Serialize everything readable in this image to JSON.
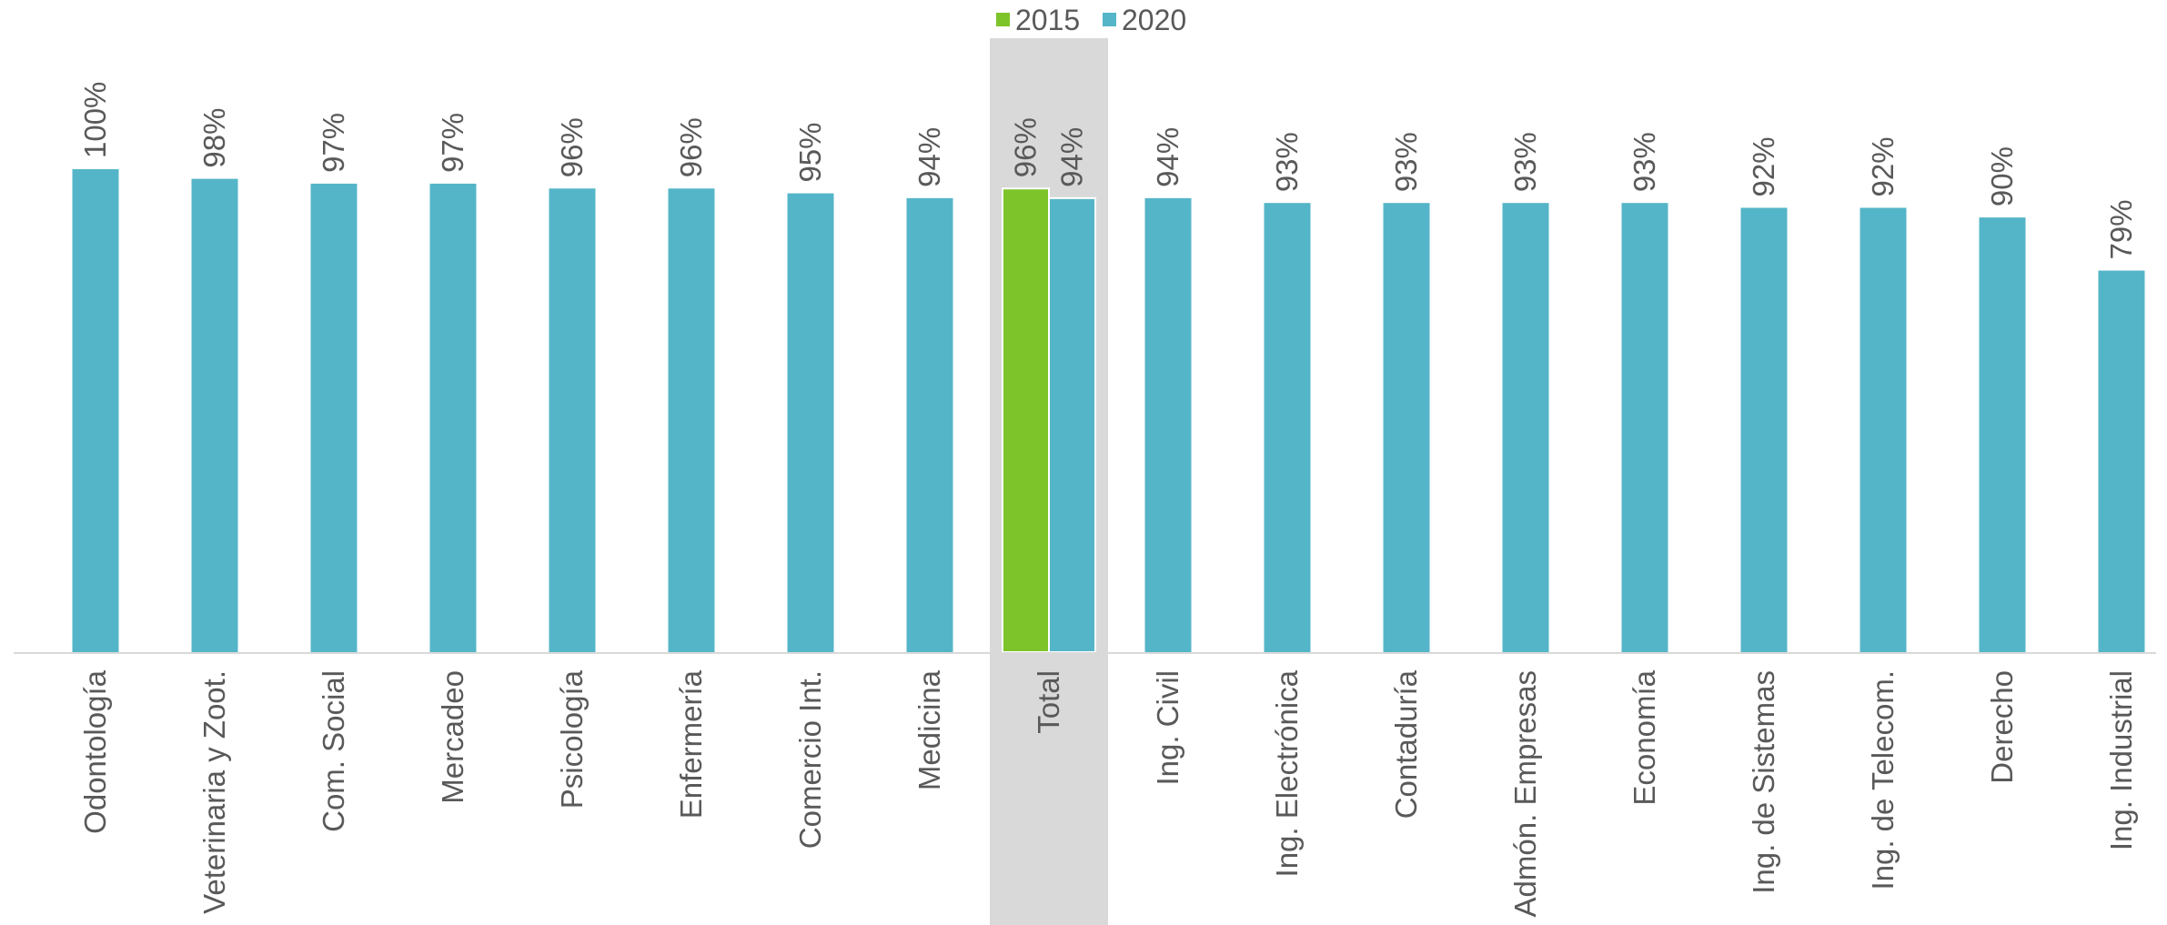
{
  "chart_data": {
    "type": "bar",
    "categories": [
      "Odontología",
      "Veterinaria y Zoot.",
      "Com. Social",
      "Mercadeo",
      "Psicología",
      "Enfermería",
      "Comercio Int.",
      "Medicina",
      "Total",
      "Ing. Civil",
      "Ing. Electrónica",
      "Contaduría",
      "Admón. Empresas",
      "Economía",
      "Ing. de Sistemas",
      "Ing. de Telecom.",
      "Derecho",
      "Ing. Industrial"
    ],
    "series": [
      {
        "name": "2015",
        "values": [
          null,
          null,
          null,
          null,
          null,
          null,
          null,
          null,
          96,
          null,
          null,
          null,
          null,
          null,
          null,
          null,
          null,
          null
        ]
      },
      {
        "name": "2020",
        "values": [
          100,
          98,
          97,
          97,
          96,
          96,
          95,
          94,
          94,
          94,
          93,
          93,
          93,
          93,
          92,
          92,
          90,
          79
        ]
      }
    ],
    "data_labels": {
      "2015": [
        "",
        "",
        "",
        "",
        "",
        "",
        "",
        "",
        "96%",
        "",
        "",
        "",
        "",
        "",
        "",
        "",
        "",
        ""
      ],
      "2020": [
        "100%",
        "98%",
        "97%",
        "97%",
        "96%",
        "96%",
        "95%",
        "94%",
        "94%",
        "94%",
        "93%",
        "93%",
        "93%",
        "93%",
        "92%",
        "92%",
        "90%",
        "79%"
      ]
    },
    "highlight_category": "Total",
    "ylim": [
      0,
      100
    ],
    "grid": false,
    "legend_position": "top",
    "colors": {
      "2015": "#7dc42b",
      "2020": "#55b5c8",
      "highlight_band": "#d9d9d9",
      "axis": "#d9d9d9",
      "text": "#595959"
    }
  }
}
